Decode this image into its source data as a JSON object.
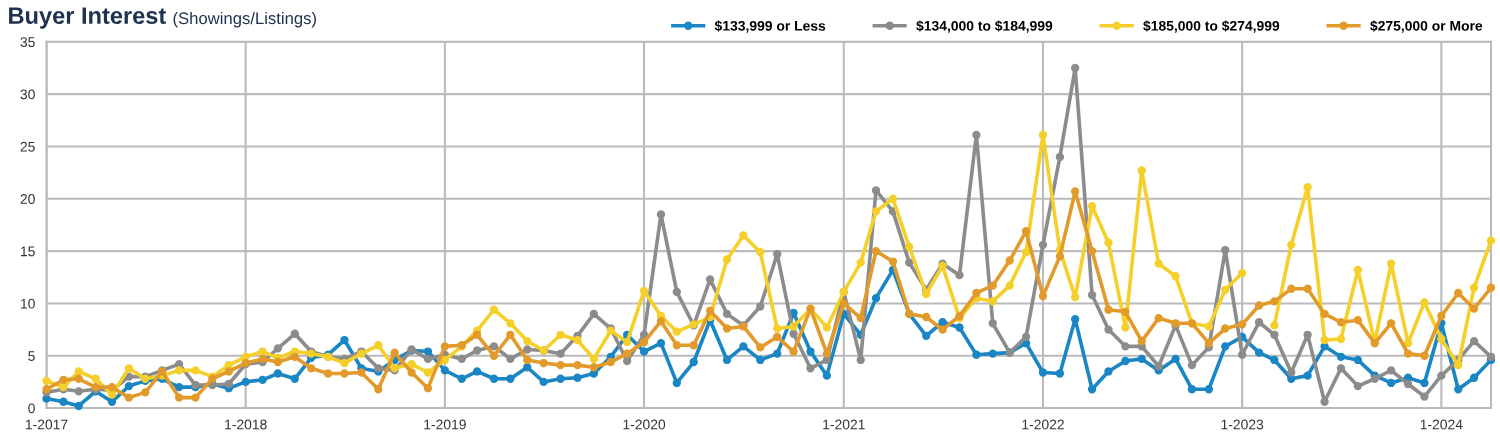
{
  "chart_data": {
    "type": "line",
    "title": "Buyer Interest",
    "subtitle": "(Showings/Listings)",
    "x": [
      "2017-01",
      "2017-02",
      "2017-03",
      "2017-04",
      "2017-05",
      "2017-06",
      "2017-07",
      "2017-08",
      "2017-09",
      "2017-10",
      "2017-11",
      "2017-12",
      "2018-01",
      "2018-02",
      "2018-03",
      "2018-04",
      "2018-05",
      "2018-06",
      "2018-07",
      "2018-08",
      "2018-09",
      "2018-10",
      "2018-11",
      "2018-12",
      "2019-01",
      "2019-02",
      "2019-03",
      "2019-04",
      "2019-05",
      "2019-06",
      "2019-07",
      "2019-08",
      "2019-09",
      "2019-10",
      "2019-11",
      "2019-12",
      "2020-01",
      "2020-02",
      "2020-03",
      "2020-04",
      "2020-05",
      "2020-06",
      "2020-07",
      "2020-08",
      "2020-09",
      "2020-10",
      "2020-11",
      "2020-12",
      "2021-01",
      "2021-02",
      "2021-03",
      "2021-04",
      "2021-05",
      "2021-06",
      "2021-07",
      "2021-08",
      "2021-09",
      "2021-10",
      "2021-11",
      "2021-12",
      "2022-01",
      "2022-02",
      "2022-03",
      "2022-04",
      "2022-05",
      "2022-06",
      "2022-07",
      "2022-08",
      "2022-09",
      "2022-10",
      "2022-11",
      "2022-12",
      "2023-01",
      "2023-02",
      "2023-03",
      "2023-04",
      "2023-05",
      "2023-06",
      "2023-07",
      "2023-08",
      "2023-09",
      "2023-10",
      "2023-11",
      "2023-12",
      "2024-01",
      "2024-02",
      "2024-03",
      "2024-04"
    ],
    "series": [
      {
        "name": "$133,999 or Less",
        "color": "#1a86c4",
        "values": [
          0.9,
          0.6,
          0.2,
          1.6,
          0.6,
          2.1,
          2.6,
          2.8,
          2.0,
          2.0,
          2.3,
          1.9,
          2.5,
          2.7,
          3.3,
          2.8,
          4.8,
          5.1,
          6.5,
          3.8,
          3.5,
          4.6,
          5.5,
          5.4,
          3.6,
          2.8,
          3.5,
          2.8,
          2.8,
          3.9,
          2.5,
          2.8,
          2.9,
          3.3,
          4.9,
          7.0,
          5.4,
          6.2,
          2.4,
          4.4,
          8.4,
          4.6,
          5.9,
          4.6,
          5.2,
          9.1,
          5.4,
          3.1,
          9.0,
          7.0,
          10.5,
          13.2,
          9.0,
          6.9,
          8.2,
          7.7,
          5.1,
          5.2,
          5.3,
          6.2,
          3.4,
          3.3,
          8.5,
          1.8,
          3.5,
          4.5,
          4.7,
          3.6,
          4.7,
          1.8,
          1.8,
          5.9,
          6.8,
          5.3,
          4.6,
          2.8,
          3.1,
          5.9,
          4.9,
          4.6,
          3.1,
          2.4,
          2.9,
          2.4,
          8.1,
          1.8,
          2.9,
          4.6
        ]
      },
      {
        "name": "$134,000 to $184,999",
        "color": "#8c8c8c",
        "values": [
          1.5,
          1.8,
          1.6,
          1.8,
          1.7,
          3.0,
          3.0,
          3.6,
          4.2,
          2.2,
          2.2,
          2.3,
          4.2,
          4.4,
          5.7,
          7.1,
          5.4,
          4.9,
          4.7,
          5.4,
          3.8,
          3.6,
          5.6,
          4.7,
          5.1,
          4.7,
          5.5,
          5.9,
          4.7,
          5.6,
          5.5,
          5.2,
          6.9,
          9.0,
          7.6,
          4.5,
          7.0,
          18.5,
          11.1,
          7.9,
          12.3,
          9.0,
          7.9,
          9.7,
          14.7,
          7.1,
          3.8,
          4.6,
          11.1,
          4.6,
          20.8,
          18.8,
          13.9,
          11.3,
          13.8,
          12.7,
          26.1,
          8.1,
          5.3,
          6.8,
          15.6,
          24.0,
          32.5,
          10.8,
          7.5,
          5.9,
          5.9,
          4.0,
          7.9,
          4.1,
          5.8,
          15.1,
          5.1,
          8.2,
          7.0,
          3.4,
          7.0,
          0.6,
          3.8,
          2.1,
          2.8,
          3.6,
          2.3,
          1.1,
          3.1,
          4.6,
          6.4,
          4.9
        ]
      },
      {
        "name": "$185,000 to $274,999",
        "color": "#f5cf2a",
        "values": [
          2.6,
          2.0,
          3.5,
          2.8,
          1.3,
          3.8,
          2.8,
          3.1,
          3.6,
          3.6,
          3.0,
          4.1,
          4.9,
          5.4,
          4.8,
          5.4,
          5.2,
          4.9,
          4.3,
          5.2,
          6.0,
          3.8,
          4.2,
          3.4,
          4.6,
          5.9,
          7.4,
          9.4,
          8.1,
          6.4,
          5.5,
          7.0,
          6.5,
          4.7,
          7.4,
          6.3,
          11.2,
          8.8,
          7.3,
          8.0,
          8.7,
          14.2,
          16.5,
          14.9,
          7.6,
          7.8,
          9.5,
          7.7,
          11.1,
          13.9,
          18.8,
          20.0,
          15.4,
          10.9,
          13.6,
          8.6,
          10.5,
          10.2,
          11.7,
          14.9,
          26.1,
          15.1,
          10.6,
          19.3,
          15.8,
          7.7,
          22.7,
          13.8,
          12.6,
          8.1,
          7.8,
          11.3,
          12.9,
          null,
          7.9,
          15.6,
          21.1,
          6.5,
          6.6,
          13.2,
          6.3,
          13.8,
          6.2,
          10.1,
          6.6,
          4.1,
          11.5,
          16.0
        ]
      },
      {
        "name": "$275,000 or More",
        "color": "#e29a2b",
        "values": [
          1.8,
          2.7,
          2.8,
          2.0,
          2.0,
          1.0,
          1.5,
          3.5,
          1.0,
          1.0,
          2.8,
          3.5,
          4.3,
          4.7,
          4.4,
          4.9,
          3.8,
          3.3,
          3.3,
          3.4,
          1.8,
          5.3,
          3.4,
          1.9,
          5.9,
          6.0,
          7.0,
          5.0,
          7.0,
          4.6,
          4.3,
          4.1,
          4.1,
          3.9,
          4.4,
          5.2,
          6.3,
          8.3,
          6.0,
          6.0,
          9.3,
          7.6,
          7.8,
          5.8,
          6.8,
          5.4,
          9.5,
          5.2,
          10.0,
          8.6,
          15.0,
          14.0,
          9.0,
          8.7,
          7.5,
          8.8,
          11.0,
          11.7,
          14.1,
          16.9,
          10.7,
          14.5,
          20.7,
          15.0,
          9.4,
          9.2,
          6.4,
          8.6,
          8.1,
          8.1,
          6.2,
          7.6,
          8.0,
          9.8,
          10.2,
          11.4,
          11.4,
          9.0,
          8.2,
          8.4,
          6.2,
          8.1,
          5.2,
          5.0,
          8.8,
          11.0,
          9.5,
          11.5
        ]
      }
    ],
    "xlim": [
      "2017-01",
      "2024-04"
    ],
    "xticks": [
      {
        "value": "2017-01",
        "label": "1-2017"
      },
      {
        "value": "2018-01",
        "label": "1-2018"
      },
      {
        "value": "2019-01",
        "label": "1-2019"
      },
      {
        "value": "2020-01",
        "label": "1-2020"
      },
      {
        "value": "2021-01",
        "label": "1-2021"
      },
      {
        "value": "2022-01",
        "label": "1-2022"
      },
      {
        "value": "2023-01",
        "label": "1-2023"
      },
      {
        "value": "2024-01",
        "label": "1-2024"
      }
    ],
    "ylim": [
      0,
      35
    ],
    "yticks": [
      0,
      5,
      10,
      15,
      20,
      25,
      30,
      35
    ],
    "grid": true,
    "legend": "top right",
    "marker": "circle",
    "line_style": "solid"
  }
}
